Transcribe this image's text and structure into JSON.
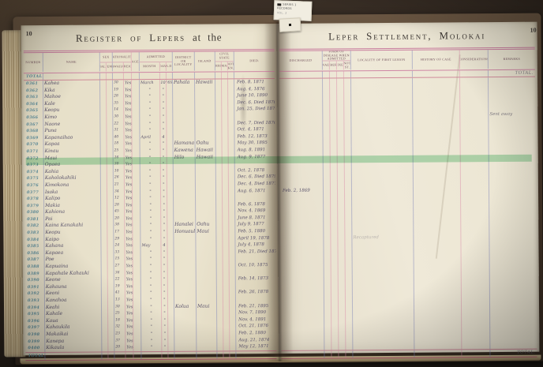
{
  "tag": {
    "line1": "SERIES 1",
    "line2": "RECORDS",
    "line3": "VOL. 2"
  },
  "left_page": {
    "page_number": "10",
    "title_main": "Register of Lepers",
    "title_suffix": "at the",
    "total_label": "TOTAL.",
    "footer_total": "TOTAL.",
    "headers": {
      "number": "Number",
      "name": "Name",
      "sex": "Sex",
      "male": "Male",
      "female": "Fem.",
      "nationality": "Nationality",
      "hawaiian": "Hawaiian",
      "foreigner": "Foreig'r",
      "age": "Age",
      "admitted": "Admitted",
      "month": "Month",
      "day": "Day",
      "year": "A.D.",
      "district": "District or Locality",
      "island": "Island",
      "civil_state": "Civil State",
      "married": "Married",
      "unmarried": "Unmar'd",
      "not_known": "Not kn.",
      "died": "Died."
    }
  },
  "right_page": {
    "page_number": "10",
    "title": "Leper Settlement, Molokai",
    "total_label": "TOTAL.",
    "footer_total": "TOTAL.",
    "headers": {
      "discharged": "Discharged",
      "form_group": "Form of Disease when Admitted",
      "form_cols": [
        "Anaes.",
        "Tuberc.",
        "Mixed",
        "Not st."
      ],
      "locality": "Locality of First Lesion",
      "history": "History of Case",
      "considerations": "Considerations",
      "remarks": "Remarks"
    }
  },
  "colors": {
    "paper": "#ebe4cf",
    "pink_rule": "#cf87a5",
    "blue_rule": "#8085b9",
    "green_highlight": "#7fcf99",
    "number_ink": "#5e8d9b",
    "hand_ink": "#57506a",
    "background": "#2b231c"
  },
  "rows": [
    {
      "n": "0361",
      "name": "Kahea",
      "a": "30",
      "h": "Yes",
      "mo": "March",
      "d": "10",
      "y": "'69",
      "di": "Pahala",
      "is": "Hawaii",
      "dd": "Feb. 8, 1871"
    },
    {
      "n": "0362",
      "name": "Kika",
      "a": "19",
      "h": "Yes",
      "mo": "\"",
      "d": "\"",
      "dd": "Aug. 4, 1876"
    },
    {
      "n": "0363",
      "name": "Mahoe",
      "a": "28",
      "h": "Yes",
      "mo": "\"",
      "d": "\"",
      "dd": "June 10, 1890"
    },
    {
      "n": "0364",
      "name": "Kale",
      "a": "35",
      "h": "Yes",
      "mo": "\"",
      "d": "\"",
      "dd": "Dec. 6, Died 1876"
    },
    {
      "n": "0365",
      "name": "Keopu",
      "a": "14",
      "h": "Yes",
      "mo": "\"",
      "d": "\"",
      "dd": "Jan. 25, Died 1875"
    },
    {
      "n": "0366",
      "name": "Kimo",
      "a": "30",
      "h": "Yes",
      "mo": "\"",
      "d": "\"",
      "rm": "Sent away"
    },
    {
      "n": "0367",
      "name": "Naone",
      "a": "22",
      "h": "Yes",
      "mo": "\"",
      "d": "\"",
      "dd": "Dec. 7, Died 1876"
    },
    {
      "n": "0368",
      "name": "Puna",
      "a": "31",
      "h": "Yes",
      "mo": "\"",
      "d": "\"",
      "dd": "Oct. 4, 1871"
    },
    {
      "n": "0369",
      "name": "Kapanaihao",
      "a": "40",
      "h": "Yes",
      "mo": "April",
      "d": "4",
      "dd": "Feb. 12, 1873"
    },
    {
      "n": "0370",
      "name": "Kapaa",
      "a": "18",
      "h": "Yes",
      "mo": "\"",
      "d": "\"",
      "di": "Hamana",
      "is": "Oahu",
      "dd": "May 30, 1895"
    },
    {
      "n": "0371",
      "name": "Kinau",
      "a": "25",
      "h": "Yes",
      "mo": "\"",
      "d": "\"",
      "di": "Kawena",
      "is": "Hawaii",
      "dd": "Aug. 8, 1891"
    },
    {
      "n": "0372",
      "name": "Maui",
      "a": "16",
      "h": "Yes",
      "mo": "\"",
      "d": "\"",
      "di": "Hilo",
      "is": "Hawaii",
      "dd": "Aug. 9, 1877"
    },
    {
      "n": "0373",
      "name": "Opaea",
      "a": "30",
      "h": "Yes",
      "mo": "\"",
      "d": "\"",
      "hl": true
    },
    {
      "n": "0374",
      "name": "Kahia",
      "a": "10",
      "h": "Yes",
      "mo": "\"",
      "d": "\"",
      "dd": "Oct. 2, 1878"
    },
    {
      "n": "0375",
      "name": "Kaholokahiki",
      "a": "26",
      "h": "Yes",
      "mo": "\"",
      "d": "\"",
      "dd": "Dec. 6, Died 1879"
    },
    {
      "n": "0376",
      "name": "Kimokona",
      "a": "21",
      "h": "Yes",
      "mo": "\"",
      "d": "\"",
      "dd": "Dec. 4, Died 1877"
    },
    {
      "n": "0377",
      "name": "Isaka",
      "a": "34",
      "h": "Yes",
      "mo": "\"",
      "d": "\"",
      "dd": "Aug. 6, 1871",
      "ds": "Feb. 2, 1869"
    },
    {
      "n": "0378",
      "name": "Kalipo",
      "a": "12",
      "h": "Yes",
      "mo": "\"",
      "d": "\""
    },
    {
      "n": "0379",
      "name": "Makia",
      "a": "28",
      "h": "Yes",
      "mo": "\"",
      "d": "\"",
      "dd": "Feb. 6, 1878"
    },
    {
      "n": "0380",
      "name": "Kahiona",
      "a": "45",
      "h": "Yes",
      "mo": "\"",
      "d": "\"",
      "dd": "Nov. 4, 1869"
    },
    {
      "n": "0381",
      "name": "Pai",
      "a": "20",
      "h": "Yes",
      "mo": "\"",
      "d": "\"",
      "dd": "June 8, 1871"
    },
    {
      "n": "0382",
      "name": "Kaina Kanakahi",
      "a": "38",
      "h": "Yes",
      "mo": "\"",
      "d": "\"",
      "di": "Hanalei",
      "is": "Oahu",
      "dd": "July 9, 1877"
    },
    {
      "n": "0383",
      "name": "Keopu",
      "a": "17",
      "h": "Yes",
      "mo": "\"",
      "d": "\"",
      "di": "Honuaula",
      "is": "Maui",
      "dd": "Feb. 5, 1880"
    },
    {
      "n": "0384",
      "name": "Kaipo",
      "a": "29",
      "h": "Yes",
      "mo": "\"",
      "d": "\"",
      "dd": "April 19, 1878",
      "nt": "Recaptured"
    },
    {
      "n": "0385",
      "name": "Kahana",
      "a": "24",
      "h": "Yes",
      "mo": "May",
      "d": "4",
      "dd": "July 4, 1878"
    },
    {
      "n": "0386",
      "name": "Kapaea",
      "a": "33",
      "h": "Yes",
      "mo": "\"",
      "d": "\"",
      "dd": "Feb. 21, Died 1871"
    },
    {
      "n": "0387",
      "name": "Poe",
      "a": "15",
      "h": "Yes",
      "mo": "\"",
      "d": "\""
    },
    {
      "n": "0388",
      "name": "Kapuaina",
      "a": "27",
      "h": "Yes",
      "mo": "\"",
      "d": "\"",
      "dd": "Oct. 10, 1875"
    },
    {
      "n": "0389",
      "name": "Kapahale Kahauki",
      "a": "36",
      "h": "Yes",
      "mo": "\"",
      "d": "\""
    },
    {
      "n": "0390",
      "name": "Keone",
      "a": "22",
      "h": "Yes",
      "mo": "\"",
      "d": "\"",
      "dd": "Feb. 14, 1873"
    },
    {
      "n": "0391",
      "name": "Kahauna",
      "a": "19",
      "h": "Yes",
      "mo": "\"",
      "d": "\""
    },
    {
      "n": "0392",
      "name": "Keoni",
      "a": "41",
      "h": "Yes",
      "mo": "\"",
      "d": "\"",
      "dd": "Feb. 26, 1878"
    },
    {
      "n": "0393",
      "name": "Kanahoa",
      "a": "13",
      "h": "Yes",
      "mo": "\"",
      "d": "\""
    },
    {
      "n": "0394",
      "name": "Keahi",
      "a": "30",
      "h": "Yes",
      "mo": "\"",
      "d": "\"",
      "di": "Kolua",
      "is": "Maui",
      "dd": "Feb. 21, 1895"
    },
    {
      "n": "0395",
      "name": "Kahale",
      "a": "25",
      "h": "Yes",
      "mo": "\"",
      "d": "\"",
      "dd": "Nov. 7, 1890"
    },
    {
      "n": "0396",
      "name": "Kaua",
      "a": "18",
      "h": "Yes",
      "mo": "\"",
      "d": "\"",
      "dd": "Nov. 4, 1891"
    },
    {
      "n": "0397",
      "name": "Kahaukila",
      "a": "32",
      "h": "Yes",
      "mo": "\"",
      "d": "\"",
      "dd": "Oct. 21, 1876"
    },
    {
      "n": "0398",
      "name": "Makaikai",
      "a": "23",
      "h": "Yes",
      "mo": "\"",
      "d": "\"",
      "dd": "Feb. 2, 1880"
    },
    {
      "n": "0399",
      "name": "Kanepa",
      "a": "37",
      "h": "Yes",
      "mo": "\"",
      "d": "\"",
      "dd": "Aug. 21, 1874"
    },
    {
      "n": "0400",
      "name": "Kikaula",
      "a": "20",
      "h": "Yes",
      "mo": "\"",
      "d": "\"",
      "dd": "May 12, 1871"
    }
  ]
}
